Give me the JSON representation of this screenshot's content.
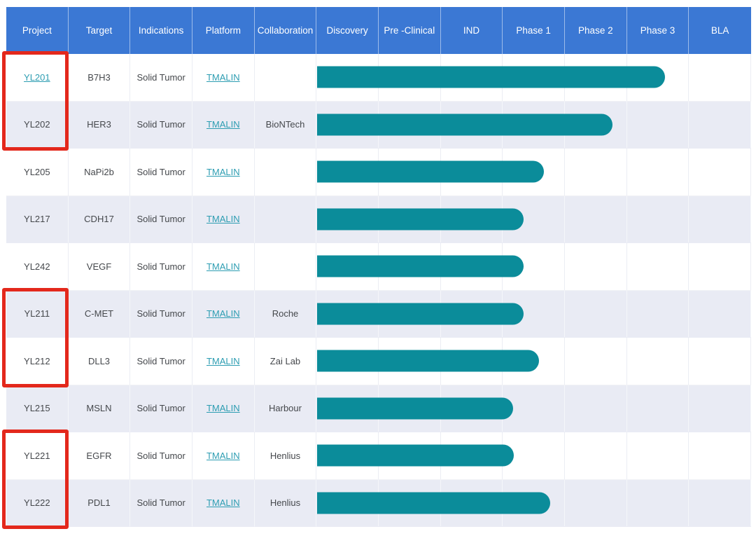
{
  "table": {
    "columns": [
      "Project",
      "Target",
      "Indications",
      "Platform",
      "Collaboration",
      "Discovery",
      "Pre -Clinical",
      "IND",
      "Phase 1",
      "Phase 2",
      "Phase 3",
      "BLA"
    ],
    "rows": [
      {
        "project": "YL201",
        "project_is_link": true,
        "target": "B7H3",
        "indications": "Solid Tumor",
        "platform": "TMALIN",
        "collaboration": "",
        "progress": 5.6
      },
      {
        "project": "YL202",
        "project_is_link": false,
        "target": "HER3",
        "indications": "Solid Tumor",
        "platform": "TMALIN",
        "collaboration": "BioNTech",
        "progress": 4.76
      },
      {
        "project": "YL205",
        "project_is_link": false,
        "target": "NaPi2b",
        "indications": "Solid Tumor",
        "platform": "TMALIN",
        "collaboration": "",
        "progress": 3.65
      },
      {
        "project": "YL217",
        "project_is_link": false,
        "target": "CDH17",
        "indications": "Solid Tumor",
        "platform": "TMALIN",
        "collaboration": "",
        "progress": 3.32
      },
      {
        "project": "YL242",
        "project_is_link": false,
        "target": "VEGF",
        "indications": "Solid Tumor",
        "platform": "TMALIN",
        "collaboration": "",
        "progress": 3.32
      },
      {
        "project": "YL211",
        "project_is_link": false,
        "target": "C-MET",
        "indications": "Solid Tumor",
        "platform": "TMALIN",
        "collaboration": "Roche",
        "progress": 3.32
      },
      {
        "project": "YL212",
        "project_is_link": false,
        "target": "DLL3",
        "indications": "Solid Tumor",
        "platform": "TMALIN",
        "collaboration": "Zai Lab",
        "progress": 3.57
      },
      {
        "project": "YL215",
        "project_is_link": false,
        "target": "MSLN",
        "indications": "Solid Tumor",
        "platform": "TMALIN",
        "collaboration": "Harbour",
        "progress": 3.15
      },
      {
        "project": "YL221",
        "project_is_link": false,
        "target": "EGFR",
        "indications": "Solid Tumor",
        "platform": "TMALIN",
        "collaboration": "Henlius",
        "progress": 3.17
      },
      {
        "project": "YL222",
        "project_is_link": false,
        "target": "PDL1",
        "indications": "Solid Tumor",
        "platform": "TMALIN",
        "collaboration": "Henlius",
        "progress": 3.75
      }
    ]
  },
  "annotations": [
    {
      "type": "red-box",
      "projects": [
        "YL201",
        "YL202"
      ],
      "start_row": 0,
      "row_count": 2
    },
    {
      "type": "red-box",
      "projects": [
        "YL211",
        "YL212"
      ],
      "start_row": 5,
      "row_count": 2
    },
    {
      "type": "red-box",
      "projects": [
        "YL221",
        "YL222"
      ],
      "start_row": 8,
      "row_count": 2
    }
  ],
  "colors": {
    "header_bg": "#3b78d4",
    "header_text": "#ffffff",
    "bar_teal": "#0b8c9a",
    "row_stripe": "#e9ebf4",
    "link_teal": "#2d9db2",
    "annotation_red": "#e3281c",
    "body_text": "#45484c"
  },
  "chart_data": {
    "type": "bar",
    "title": "Drug candidate pipeline progress (Gantt-style table)",
    "categories": [
      "YL201",
      "YL202",
      "YL205",
      "YL217",
      "YL242",
      "YL211",
      "YL212",
      "YL215",
      "YL221",
      "YL222"
    ],
    "values": [
      5.6,
      4.76,
      3.65,
      3.32,
      3.32,
      3.32,
      3.57,
      3.15,
      3.17,
      3.75
    ],
    "stages": [
      "Discovery",
      "Pre -Clinical",
      "IND",
      "Phase 1",
      "Phase 2",
      "Phase 3",
      "BLA"
    ],
    "value_unit": "stage units: 0 = start of Discovery, each stage = 1 unit, 7 = end of BLA",
    "xlim": [
      0,
      7
    ],
    "orientation": "horizontal",
    "grid": true,
    "legend": false
  }
}
